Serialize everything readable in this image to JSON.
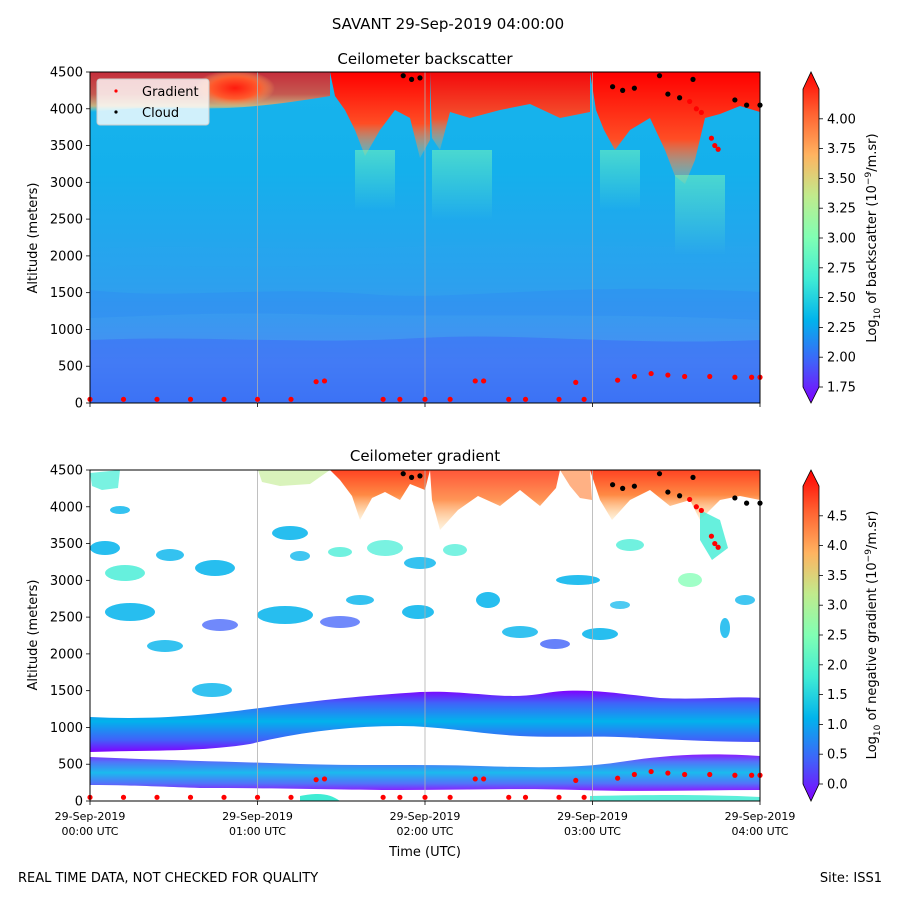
{
  "suptitle": "SAVANT 29-Sep-2019 04:00:00",
  "footer_left": "REAL TIME DATA, NOT CHECKED FOR QUALITY",
  "footer_right": "Site: ISS1",
  "xlabel": "Time (UTC)",
  "x_ticks": [
    {
      "t": 0,
      "line1": "29-Sep-2019",
      "line2": "00:00 UTC"
    },
    {
      "t": 1,
      "line1": "29-Sep-2019",
      "line2": "01:00 UTC"
    },
    {
      "t": 2,
      "line1": "29-Sep-2019",
      "line2": "02:00 UTC"
    },
    {
      "t": 3,
      "line1": "29-Sep-2019",
      "line2": "03:00 UTC"
    },
    {
      "t": 4,
      "line1": "29-Sep-2019",
      "line2": "04:00 UTC"
    }
  ],
  "colors": {
    "gradient_marker": "#ff0000",
    "cloud_marker": "#000000",
    "colormap": [
      "#8000ff",
      "#4062f9",
      "#01b3ec",
      "#40ecd4",
      "#80ffb4",
      "#c0eb8d",
      "#ffb360",
      "#ff6231",
      "#ff0000"
    ]
  },
  "chart_data": [
    {
      "type": "heatmap",
      "title": "Ceilometer backscatter",
      "ylabel": "Altitude (meters)",
      "xlim": [
        0,
        4
      ],
      "ylim": [
        0,
        4500
      ],
      "y_ticks": [
        "0",
        "500",
        "1000",
        "1500",
        "2000",
        "2500",
        "3000",
        "3500",
        "4000",
        "4500"
      ],
      "grid": "vertical lines at hourly ticks",
      "legend": {
        "placement": "upper-left",
        "entries": [
          "Gradient",
          "Cloud"
        ]
      },
      "colorbar": {
        "label_pre": "Log",
        "label_sub": "10",
        "label_mid": " of backscatter (10",
        "label_sup": "−9",
        "label_post": "/m.sr)",
        "range": [
          1.75,
          4.25
        ],
        "ticks": [
          "1.75",
          "2.00",
          "2.25",
          "2.50",
          "2.75",
          "3.00",
          "3.25",
          "3.50",
          "3.75",
          "4.00"
        ],
        "tick_values": [
          1.75,
          2.0,
          2.25,
          2.5,
          2.75,
          3.0,
          3.25,
          3.5,
          3.75,
          4.0
        ],
        "extend": "both"
      },
      "series": [
        {
          "name": "Gradient",
          "points": [
            [
              0.0,
              50
            ],
            [
              0.2,
              50
            ],
            [
              0.4,
              50
            ],
            [
              0.6,
              50
            ],
            [
              0.8,
              50
            ],
            [
              1.0,
              50
            ],
            [
              1.2,
              50
            ],
            [
              1.35,
              290
            ],
            [
              1.4,
              300
            ],
            [
              1.75,
              50
            ],
            [
              1.85,
              50
            ],
            [
              2.0,
              50
            ],
            [
              2.15,
              50
            ],
            [
              2.3,
              300
            ],
            [
              2.35,
              300
            ],
            [
              2.5,
              50
            ],
            [
              2.6,
              50
            ],
            [
              2.8,
              50
            ],
            [
              2.9,
              280
            ],
            [
              2.95,
              50
            ],
            [
              3.15,
              310
            ],
            [
              3.25,
              360
            ],
            [
              3.35,
              400
            ],
            [
              3.45,
              380
            ],
            [
              3.55,
              360
            ],
            [
              3.7,
              360
            ],
            [
              3.85,
              350
            ],
            [
              3.95,
              350
            ],
            [
              4.0,
              350
            ],
            [
              3.71,
              3600
            ],
            [
              3.73,
              3500
            ],
            [
              3.75,
              3450
            ],
            [
              3.58,
              4100
            ],
            [
              3.62,
              4000
            ],
            [
              3.65,
              3950
            ]
          ]
        },
        {
          "name": "Cloud",
          "points": [
            [
              1.87,
              4450
            ],
            [
              1.92,
              4400
            ],
            [
              1.97,
              4420
            ],
            [
              3.12,
              4300
            ],
            [
              3.18,
              4250
            ],
            [
              3.25,
              4280
            ],
            [
              3.4,
              4450
            ],
            [
              3.45,
              4200
            ],
            [
              3.52,
              4150
            ],
            [
              3.6,
              4400
            ],
            [
              3.85,
              4120
            ],
            [
              3.92,
              4050
            ],
            [
              4.0,
              4050
            ]
          ]
        }
      ]
    },
    {
      "type": "heatmap",
      "title": "Ceilometer gradient",
      "ylabel": "Altitude (meters)",
      "xlim": [
        0,
        4
      ],
      "ylim": [
        0,
        4500
      ],
      "y_ticks": [
        "0",
        "500",
        "1000",
        "1500",
        "2000",
        "2500",
        "3000",
        "3500",
        "4000",
        "4500"
      ],
      "grid": "vertical lines at hourly ticks",
      "colorbar": {
        "label_pre": "Log",
        "label_sub": "10",
        "label_mid": " of negative gradient (10",
        "label_sup": "−9",
        "label_post": "/m.sr)",
        "range": [
          0.0,
          5.0
        ],
        "ticks": [
          "0.0",
          "0.5",
          "1.0",
          "1.5",
          "2.0",
          "2.5",
          "3.0",
          "3.5",
          "4.0",
          "4.5"
        ],
        "tick_values": [
          0.0,
          0.5,
          1.0,
          1.5,
          2.0,
          2.5,
          3.0,
          3.5,
          4.0,
          4.5
        ],
        "extend": "both"
      },
      "series": [
        {
          "name": "Gradient",
          "points": [
            [
              0.0,
              50
            ],
            [
              0.2,
              50
            ],
            [
              0.4,
              50
            ],
            [
              0.6,
              50
            ],
            [
              0.8,
              50
            ],
            [
              1.0,
              50
            ],
            [
              1.2,
              50
            ],
            [
              1.35,
              290
            ],
            [
              1.4,
              300
            ],
            [
              1.75,
              50
            ],
            [
              1.85,
              50
            ],
            [
              2.0,
              50
            ],
            [
              2.15,
              50
            ],
            [
              2.3,
              300
            ],
            [
              2.35,
              300
            ],
            [
              2.5,
              50
            ],
            [
              2.6,
              50
            ],
            [
              2.8,
              50
            ],
            [
              2.9,
              280
            ],
            [
              2.95,
              50
            ],
            [
              3.15,
              310
            ],
            [
              3.25,
              360
            ],
            [
              3.35,
              400
            ],
            [
              3.45,
              380
            ],
            [
              3.55,
              360
            ],
            [
              3.7,
              360
            ],
            [
              3.85,
              350
            ],
            [
              3.95,
              350
            ],
            [
              4.0,
              350
            ],
            [
              3.71,
              3600
            ],
            [
              3.73,
              3500
            ],
            [
              3.75,
              3450
            ],
            [
              3.58,
              4100
            ],
            [
              3.62,
              4000
            ],
            [
              3.65,
              3950
            ]
          ]
        },
        {
          "name": "Cloud",
          "points": [
            [
              1.87,
              4450
            ],
            [
              1.92,
              4400
            ],
            [
              1.97,
              4420
            ],
            [
              3.12,
              4300
            ],
            [
              3.18,
              4250
            ],
            [
              3.25,
              4280
            ],
            [
              3.4,
              4450
            ],
            [
              3.45,
              4200
            ],
            [
              3.52,
              4150
            ],
            [
              3.6,
              4400
            ],
            [
              3.85,
              4120
            ],
            [
              3.92,
              4050
            ],
            [
              4.0,
              4050
            ]
          ]
        }
      ]
    }
  ]
}
